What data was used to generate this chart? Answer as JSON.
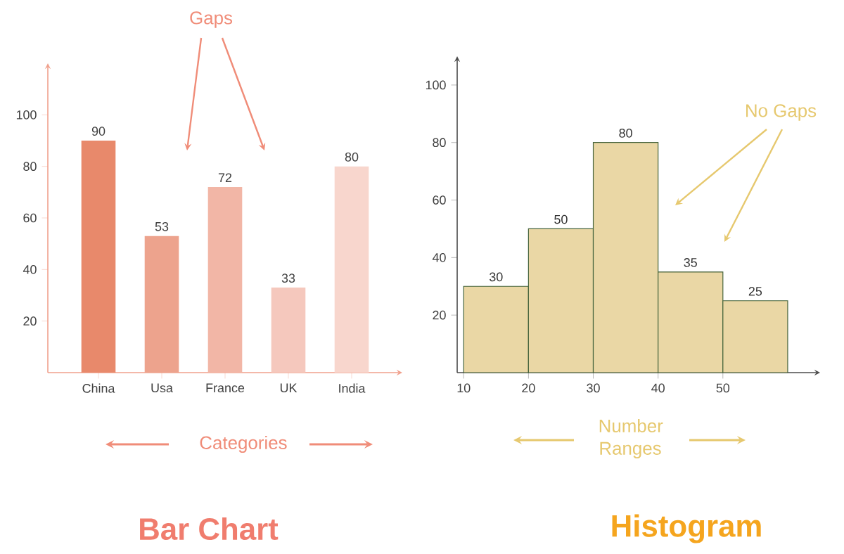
{
  "chart_data": [
    {
      "type": "bar",
      "title": "Bar Chart",
      "xlabel": "Categories",
      "categories": [
        "China",
        "Usa",
        "France",
        "UK",
        "India"
      ],
      "values": [
        90,
        53,
        72,
        33,
        80
      ],
      "colors": [
        "#e8896b",
        "#eda38d",
        "#f2b6a6",
        "#f5c8bd",
        "#f8d6cd"
      ],
      "ylim": [
        0,
        120
      ],
      "yticks": [
        20,
        40,
        60,
        80,
        100
      ],
      "data_labels": true,
      "annotations": [
        "Gaps"
      ]
    },
    {
      "type": "histogram",
      "title": "Histogram",
      "xlabel": "Number Ranges",
      "bins": [
        10,
        20,
        30,
        40,
        50,
        60
      ],
      "values": [
        30,
        50,
        80,
        35,
        25
      ],
      "color": "#ead7a5",
      "xlim": [
        9,
        65
      ],
      "xticks": [
        10,
        20,
        30,
        40,
        50
      ],
      "ylim": [
        0,
        110
      ],
      "yticks": [
        20,
        40,
        60,
        80,
        100
      ],
      "data_labels": true,
      "annotations": [
        "No Gaps"
      ]
    }
  ]
}
